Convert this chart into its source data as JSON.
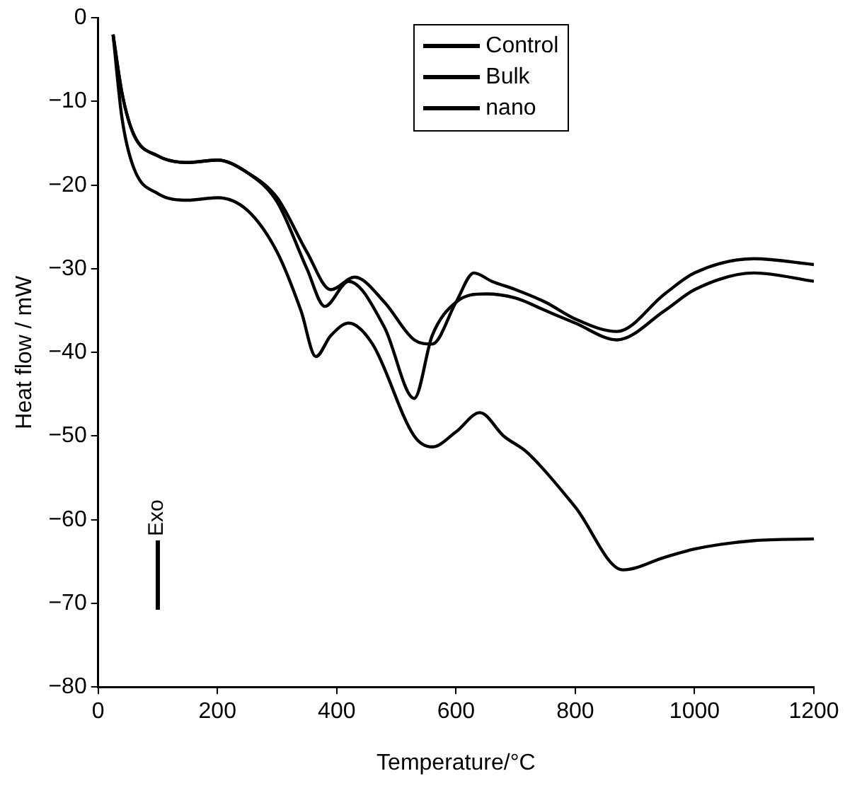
{
  "chart_data": {
    "type": "line",
    "xlabel": "Temperature/°C",
    "ylabel": "Heat flow / mW",
    "xlim": [
      0,
      1200
    ],
    "xticks": [
      0,
      200,
      400,
      600,
      800,
      1000,
      1200
    ],
    "ylim": [
      -80,
      0
    ],
    "yticks": [
      0,
      -10,
      -20,
      -30,
      -40,
      -50,
      -60,
      -70,
      -80
    ],
    "grid": false,
    "legend": "top",
    "marker": "none",
    "line_style": "solid",
    "annotations": [
      "Exo"
    ],
    "series": [
      {
        "name": "Control",
        "color": "#000000",
        "x": [
          25,
          40,
          60,
          100,
          150,
          200,
          250,
          300,
          350,
          390,
          430,
          480,
          530,
          560,
          600,
          630,
          660,
          700,
          750,
          800,
          870,
          950,
          1000,
          1100,
          1200
        ],
        "values": [
          -2,
          -9,
          -14,
          -16.5,
          -17.3,
          -17,
          -18.5,
          -21.5,
          -28,
          -32.5,
          -31,
          -34,
          -38.5,
          -39,
          -34,
          -30.5,
          -31.5,
          -32.5,
          -34,
          -36,
          -37.5,
          -33,
          -30.5,
          -28.8,
          -29.5
        ]
      },
      {
        "name": "Bulk",
        "color": "#000000",
        "x": [
          25,
          40,
          60,
          100,
          150,
          200,
          250,
          300,
          350,
          380,
          420,
          480,
          530,
          560,
          600,
          650,
          700,
          750,
          800,
          870,
          950,
          1000,
          1100,
          1200
        ],
        "values": [
          -2,
          -9,
          -14,
          -16.5,
          -17.3,
          -17,
          -18.5,
          -22,
          -30,
          -34.5,
          -31.5,
          -37,
          -45.5,
          -38,
          -34,
          -33,
          -33.5,
          -35,
          -36.5,
          -38.5,
          -35,
          -32.5,
          -30.5,
          -31.5
        ]
      },
      {
        "name": "nano",
        "color": "#000000",
        "x": [
          25,
          40,
          60,
          100,
          150,
          200,
          250,
          300,
          340,
          365,
          390,
          420,
          460,
          530,
          560,
          600,
          640,
          680,
          720,
          800,
          880,
          950,
          1000,
          1100,
          1200
        ],
        "values": [
          -2,
          -12,
          -18,
          -21,
          -21.8,
          -21.5,
          -23,
          -28,
          -35,
          -40.5,
          -38,
          -36.5,
          -39,
          -50,
          -51.3,
          -49.5,
          -47.2,
          -50,
          -52,
          -58.5,
          -66,
          -64.5,
          -63.5,
          -62.5,
          -62.3
        ]
      }
    ]
  }
}
